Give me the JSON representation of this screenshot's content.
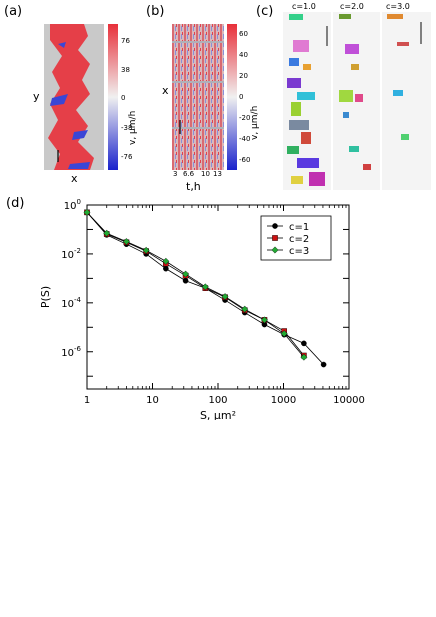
{
  "panel_a": {
    "letter": "(a)",
    "xlabel": "x",
    "ylabel": "y",
    "colorbar_label": "v, μm/h",
    "colorbar_ticks": [
      "76",
      "38",
      "0",
      "-38",
      "-76"
    ]
  },
  "panel_b": {
    "letter": "(b)",
    "xlabel": "t,h",
    "ylabel": "x",
    "xticks": [
      "3",
      "6.6",
      "10",
      "13"
    ],
    "colorbar_label": "v, μm/h",
    "colorbar_ticks": [
      "60",
      "40",
      "20",
      "0",
      "-20",
      "-40",
      "-60"
    ]
  },
  "panel_c": {
    "letter": "(c)",
    "columns": [
      "c=1.0",
      "c=2.0",
      "c=3.0"
    ]
  },
  "colors": {
    "red": "#e8303a",
    "blue": "#3a46d6",
    "grey": "#c8c8c8",
    "c1": "#000000",
    "c2": "#cc1111",
    "c3": "#22aa33"
  },
  "chart_data": {
    "type": "line",
    "panel_letter": "(d)",
    "xlabel": "S, μm²",
    "ylabel": "P(S)",
    "x_scale": "log",
    "y_scale": "log",
    "xlim": [
      1,
      10000
    ],
    "ylim": [
      3e-08,
      1
    ],
    "x_ticks": [
      "1",
      "10",
      "100",
      "1000",
      "10000"
    ],
    "y_tick_exponents": [
      0,
      -2,
      -4,
      -6
    ],
    "legend_position": "top-right",
    "series": [
      {
        "name": "c=1",
        "marker": "circle",
        "color": "#000000",
        "x": [
          1,
          2,
          4,
          8,
          16,
          32,
          64,
          128,
          256,
          512,
          1024,
          2048,
          4096
        ],
        "y": [
          0.5,
          0.06,
          0.025,
          0.01,
          0.0025,
          0.0008,
          0.0004,
          0.00013,
          4e-05,
          1.3e-05,
          5e-06,
          2.2e-06,
          3e-07
        ]
      },
      {
        "name": "c=2",
        "marker": "square",
        "color": "#cc1111",
        "x": [
          1,
          2,
          4,
          8,
          16,
          32,
          64,
          128,
          256,
          512,
          1024,
          2048
        ],
        "y": [
          0.5,
          0.065,
          0.03,
          0.013,
          0.004,
          0.0013,
          0.0004,
          0.00017,
          5e-05,
          2e-05,
          7e-06,
          7e-07
        ]
      },
      {
        "name": "c=3",
        "marker": "diamond",
        "color": "#22aa33",
        "x": [
          1,
          2,
          4,
          8,
          16,
          32,
          64,
          128,
          256,
          512,
          1024,
          2048
        ],
        "y": [
          0.5,
          0.07,
          0.032,
          0.014,
          0.005,
          0.0015,
          0.00045,
          0.00018,
          5.5e-05,
          2e-05,
          5.5e-06,
          6e-07
        ]
      }
    ]
  }
}
